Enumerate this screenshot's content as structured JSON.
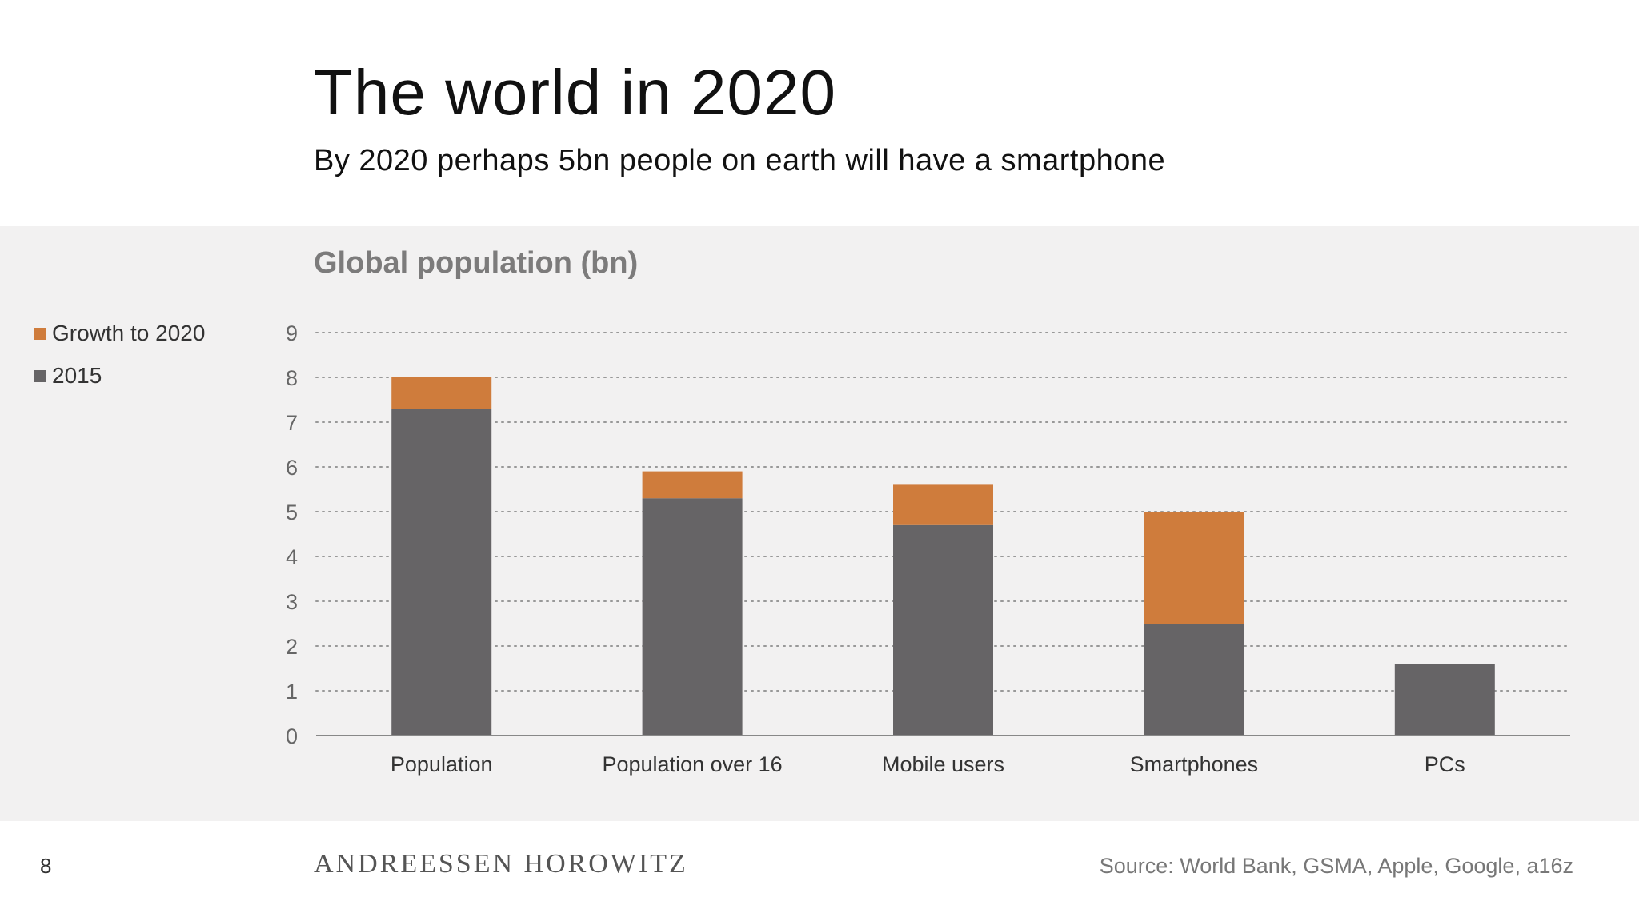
{
  "header": {
    "title": "The world in 2020",
    "subtitle": "By 2020 perhaps 5bn people on earth will have a smartphone"
  },
  "footer": {
    "page_number": "8",
    "brand": "ANDREESSEN HOROWITZ",
    "source": "Source: World Bank, GSMA, Apple, Google, a16z"
  },
  "colors": {
    "series_2015": "#666466",
    "series_growth": "#cf7c3c",
    "grid": "#999999",
    "axis": "#888888",
    "band_background": "#f2f1f1"
  },
  "chart_data": {
    "type": "bar",
    "stacked": true,
    "title": "Global population (bn)",
    "categories": [
      "Population",
      "Population over 16",
      "Mobile users",
      "Smartphones",
      "PCs"
    ],
    "series": [
      {
        "name": "2015",
        "values": [
          7.3,
          5.3,
          4.7,
          2.5,
          1.6
        ]
      },
      {
        "name": "Growth to 2020",
        "values": [
          0.7,
          0.6,
          0.9,
          2.5,
          0
        ]
      }
    ],
    "legend_order": [
      "Growth to 2020",
      "2015"
    ],
    "y_ticks": [
      "0",
      "1",
      "2",
      "3",
      "4",
      "5",
      "6",
      "7",
      "8",
      "9"
    ],
    "ylim": [
      0,
      9
    ],
    "grid": "dotted horizontal",
    "legend_position": "left"
  }
}
